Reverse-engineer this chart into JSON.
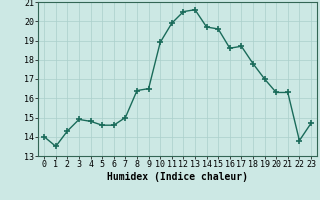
{
  "x": [
    0,
    1,
    2,
    3,
    4,
    5,
    6,
    7,
    8,
    9,
    10,
    11,
    12,
    13,
    14,
    15,
    16,
    17,
    18,
    19,
    20,
    21,
    22,
    23
  ],
  "y": [
    14.0,
    13.5,
    14.3,
    14.9,
    14.8,
    14.6,
    14.6,
    15.0,
    16.4,
    16.5,
    18.9,
    19.9,
    20.5,
    20.6,
    19.7,
    19.6,
    18.6,
    18.7,
    17.8,
    17.0,
    16.3,
    16.3,
    13.8,
    14.7
  ],
  "line_color": "#1a6b5a",
  "marker": "+",
  "marker_size": 4,
  "marker_linewidth": 1.2,
  "line_width": 1.0,
  "xlabel": "Humidex (Indice chaleur)",
  "xlabel_fontsize": 7,
  "tick_fontsize": 6,
  "ylim": [
    13,
    21
  ],
  "xlim": [
    -0.5,
    23.5
  ],
  "yticks": [
    13,
    14,
    15,
    16,
    17,
    18,
    19,
    20,
    21
  ],
  "xticks": [
    0,
    1,
    2,
    3,
    4,
    5,
    6,
    7,
    8,
    9,
    10,
    11,
    12,
    13,
    14,
    15,
    16,
    17,
    18,
    19,
    20,
    21,
    22,
    23
  ],
  "bg_color": "#cce8e4",
  "grid_color": "#aacfcb",
  "axes_edge_color": "#336655"
}
